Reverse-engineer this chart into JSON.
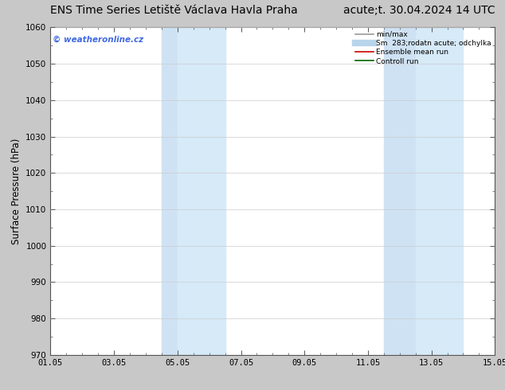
{
  "title_left": "ENS Time Series Letiště Václava Havla Praha",
  "title_right": "acute;t. 30.04.2024 14 UTC",
  "ylabel": "Surface Pressure (hPa)",
  "ylim": [
    970,
    1060
  ],
  "yticks": [
    970,
    980,
    990,
    1000,
    1010,
    1020,
    1030,
    1040,
    1050,
    1060
  ],
  "xtick_labels": [
    "01.05",
    "03.05",
    "05.05",
    "07.05",
    "09.05",
    "11.05",
    "13.05",
    "15.05"
  ],
  "xtick_positions": [
    0,
    2,
    4,
    6,
    8,
    10,
    12,
    14
  ],
  "x_total_days": 14,
  "shaded_regions": [
    {
      "x_start": 3.5,
      "x_end": 4.0,
      "color": "#cfe2f3"
    },
    {
      "x_start": 4.0,
      "x_end": 5.5,
      "color": "#d6eaf8"
    },
    {
      "x_start": 10.5,
      "x_end": 11.5,
      "color": "#cfe2f3"
    },
    {
      "x_start": 11.5,
      "x_end": 13.0,
      "color": "#d6eaf8"
    }
  ],
  "watermark_text": "© weatheronline.cz",
  "watermark_color": "#4169E1",
  "legend_entries": [
    {
      "label": "min/max",
      "color": "#999999",
      "lw": 1.2,
      "style": "solid"
    },
    {
      "label": "Sm  283;rodatn acute; odchylka",
      "color": "#b8d4ea",
      "lw": 6,
      "style": "solid"
    },
    {
      "label": "Ensemble mean run",
      "color": "#cc0000",
      "lw": 1.2,
      "style": "solid"
    },
    {
      "label": "Controll run",
      "color": "#006600",
      "lw": 1.2,
      "style": "solid"
    }
  ],
  "bg_color": "#c8c8c8",
  "plot_bg_color": "#ffffff",
  "grid_color": "#cccccc",
  "title_fontsize": 10,
  "tick_fontsize": 7.5,
  "ylabel_fontsize": 8.5,
  "minor_xtick_count": 4,
  "spine_color": "#555555"
}
